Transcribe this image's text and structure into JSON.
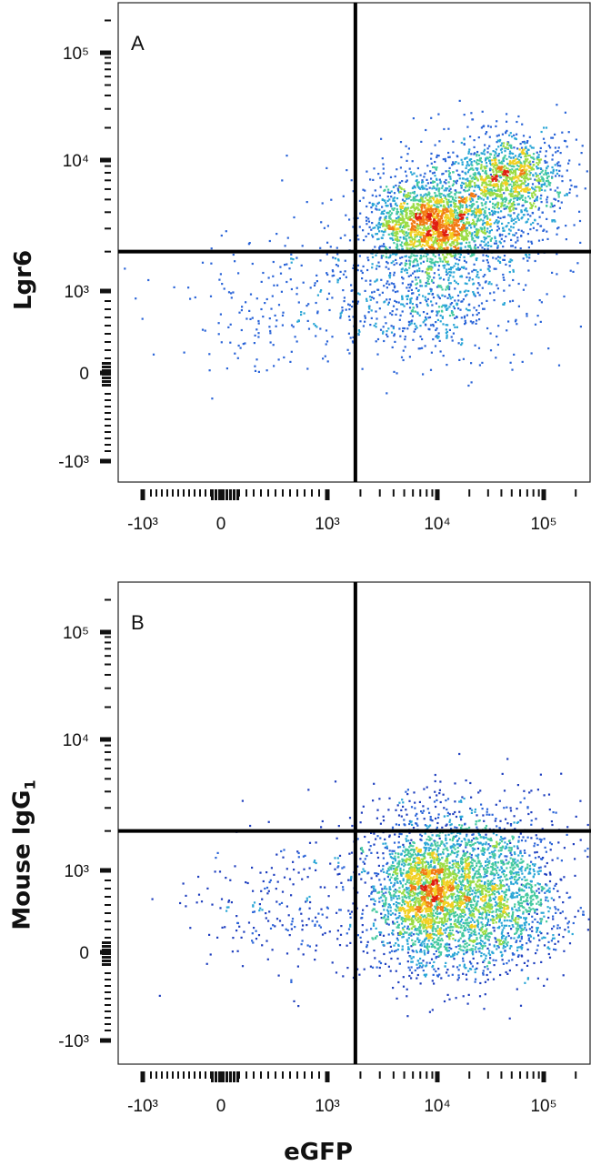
{
  "chart_data": [
    {
      "type": "scatter",
      "panel_label": "A",
      "ylabel": "Lgr6",
      "xlabel": "",
      "x_ticks": [
        "-10³",
        "0",
        "10³",
        "10⁴",
        "10⁵"
      ],
      "y_ticks": [
        "10⁵",
        "10⁴",
        "10³",
        "0",
        "-10³"
      ],
      "gate": {
        "x": 1800,
        "y": 2000
      },
      "clusters": [
        {
          "center": [
            9000,
            3200
          ],
          "spread": [
            0.28,
            0.16
          ],
          "count": 1700
        },
        {
          "center": [
            45000,
            7500
          ],
          "spread": [
            0.22,
            0.16
          ],
          "count": 900
        },
        {
          "center": [
            20000,
            5000
          ],
          "spread": [
            0.5,
            0.28
          ],
          "count": 700
        },
        {
          "center": [
            8000,
            900
          ],
          "spread": [
            0.45,
            0.22
          ],
          "count": 600
        },
        {
          "center": [
            500,
            800
          ],
          "spread": [
            0.55,
            0.3
          ],
          "count": 230
        }
      ],
      "grid": false,
      "legend": "none"
    },
    {
      "type": "scatter",
      "panel_label": "B",
      "ylabel": "Mouse IgG",
      "ylabel_subscript": "1",
      "xlabel": "eGFP",
      "x_ticks": [
        "-10³",
        "0",
        "10³",
        "10⁴",
        "10⁵"
      ],
      "y_ticks": [
        "10⁵",
        "10⁴",
        "10³",
        "0",
        "-10³"
      ],
      "gate": {
        "x": 1800,
        "y": 2000
      },
      "clusters": [
        {
          "center": [
            8000,
            700
          ],
          "spread": [
            0.22,
            0.22
          ],
          "count": 1700
        },
        {
          "center": [
            35000,
            600
          ],
          "spread": [
            0.3,
            0.24
          ],
          "count": 1200
        },
        {
          "center": [
            15000,
            1700
          ],
          "spread": [
            0.5,
            0.2
          ],
          "count": 600
        },
        {
          "center": [
            12000,
            300
          ],
          "spread": [
            0.4,
            0.2
          ],
          "count": 500
        },
        {
          "center": [
            500,
            500
          ],
          "spread": [
            0.5,
            0.3
          ],
          "count": 260
        }
      ],
      "grid": false,
      "legend": "none"
    }
  ]
}
